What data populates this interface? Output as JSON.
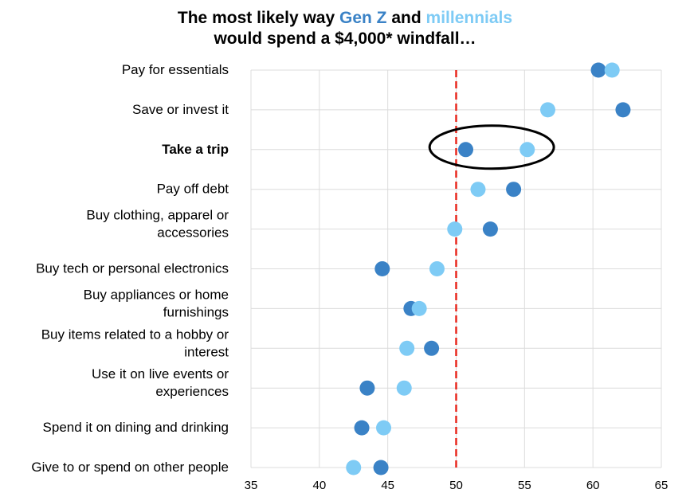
{
  "title": {
    "line1_prefix": "The most likely way ",
    "series1_word": "Gen Z",
    "line1_middle": " and ",
    "series2_word": "millennials",
    "line2": "would spend a $4,000* windfall…"
  },
  "chart_data": {
    "type": "scatter",
    "title": "The most likely way Gen Z and millennials would spend a $4,000* windfall…",
    "xlabel": "",
    "ylabel": "",
    "xlim": [
      35,
      65
    ],
    "xticks": [
      35,
      40,
      45,
      50,
      55,
      60,
      65
    ],
    "grid": true,
    "reference_line": {
      "x": 50,
      "style": "dashed",
      "color": "#e8281e"
    },
    "highlight": {
      "category": "Take a trip",
      "shape": "ellipse",
      "bold_label": true
    },
    "categories": [
      [
        "Pay for essentials"
      ],
      [
        "Save or invest it"
      ],
      [
        "Take a trip"
      ],
      [
        "Pay off debt"
      ],
      [
        "Buy clothing, apparel or",
        "accessories"
      ],
      [
        "Buy tech or personal electronics"
      ],
      [
        "Buy appliances or home",
        "furnishings"
      ],
      [
        "Buy items related to a hobby or",
        "interest"
      ],
      [
        "Use it on live events or",
        "experiences"
      ],
      [
        "Spend it on dining and drinking"
      ],
      [
        "Give to or spend on other people"
      ]
    ],
    "series": [
      {
        "name": "Gen Z",
        "color": "#3a82c6",
        "values": [
          60.4,
          62.2,
          50.7,
          54.2,
          52.5,
          44.6,
          46.7,
          48.2,
          43.5,
          43.1,
          44.5
        ]
      },
      {
        "name": "millennials",
        "color": "#7ecbf5",
        "values": [
          61.4,
          56.7,
          55.2,
          51.6,
          49.9,
          48.6,
          47.3,
          46.4,
          46.2,
          44.7,
          42.5
        ]
      }
    ]
  }
}
